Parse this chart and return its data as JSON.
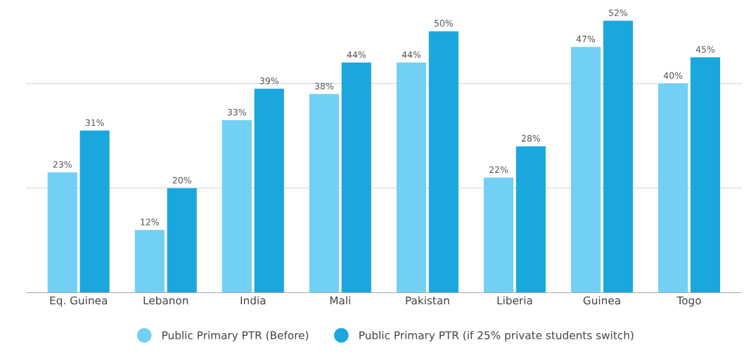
{
  "chart_data": {
    "type": "bar",
    "categories": [
      "Eq. Guinea",
      "Lebanon",
      "India",
      "Mali",
      "Pakistan",
      "Liberia",
      "Guinea",
      "Togo"
    ],
    "series": [
      {
        "name": "Public Primary PTR (Before)",
        "color": "#72d0f4",
        "values": [
          23,
          12,
          33,
          38,
          44,
          22,
          47,
          40
        ],
        "value_labels": [
          "23%",
          "12%",
          "33%",
          "38%",
          "44%",
          "22%",
          "47%",
          "40%"
        ]
      },
      {
        "name": "Public Primary PTR (if 25% private students switch)",
        "color": "#1aa7de",
        "values": [
          31,
          20,
          39,
          44,
          50,
          28,
          52,
          45
        ],
        "value_labels": [
          "31%",
          "20%",
          "39%",
          "44%",
          "50%",
          "28%",
          "52%",
          "45%"
        ]
      }
    ],
    "ref_lines": [
      {
        "axis": "y",
        "value": 20,
        "color": "#e4e4e4"
      },
      {
        "axis": "y",
        "value": 40,
        "color": "#e4e4e4"
      }
    ],
    "legend": "bottom",
    "tick_labels": "x"
  }
}
